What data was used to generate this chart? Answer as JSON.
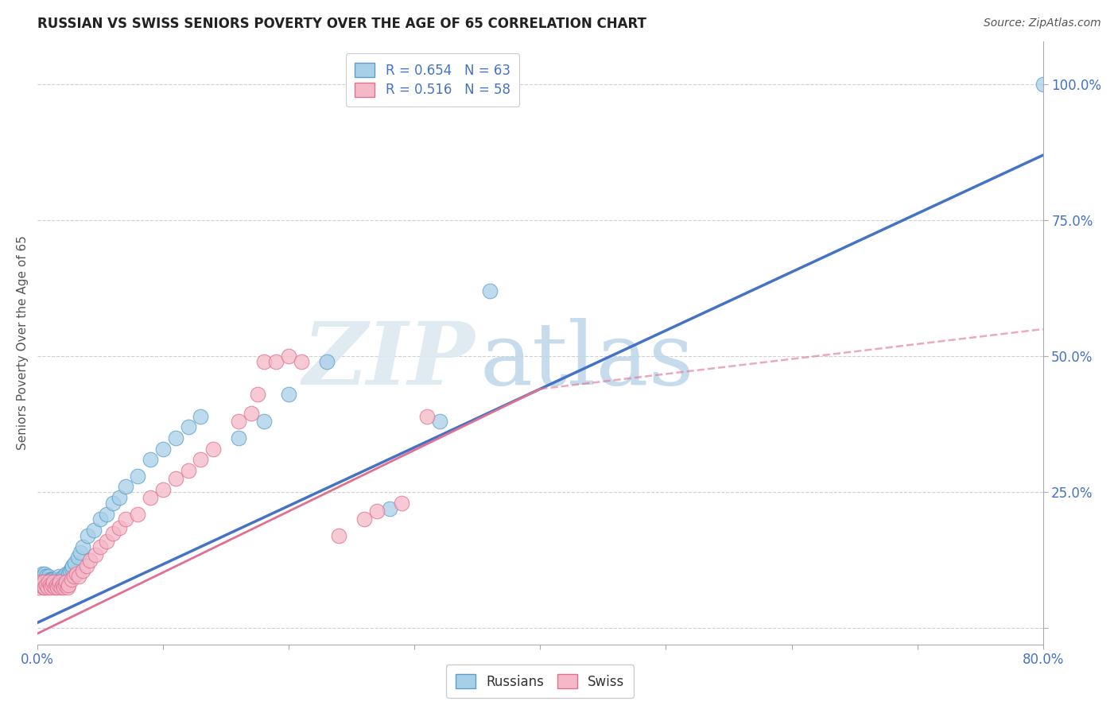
{
  "title": "RUSSIAN VS SWISS SENIORS POVERTY OVER THE AGE OF 65 CORRELATION CHART",
  "source": "Source: ZipAtlas.com",
  "ylabel": "Seniors Poverty Over the Age of 65",
  "xlim": [
    0.0,
    0.8
  ],
  "ylim": [
    -0.03,
    1.08
  ],
  "xticks": [
    0.0,
    0.1,
    0.2,
    0.3,
    0.4,
    0.5,
    0.6,
    0.7,
    0.8
  ],
  "xticklabels": [
    "0.0%",
    "",
    "",
    "",
    "",
    "",
    "",
    "",
    "80.0%"
  ],
  "right_yticks": [
    0.0,
    0.25,
    0.5,
    0.75,
    1.0
  ],
  "right_yticklabels": [
    "",
    "25.0%",
    "50.0%",
    "75.0%",
    "100.0%"
  ],
  "russian_R": 0.654,
  "russian_N": 63,
  "swiss_R": 0.516,
  "swiss_N": 58,
  "russian_color": "#a8cfe8",
  "swiss_color": "#f4b8c8",
  "russian_edge_color": "#5b9ec9",
  "swiss_edge_color": "#e07090",
  "russian_line_color": "#4472c4",
  "swiss_line_color": "#e07090",
  "watermark_zip_color": "#d8e8f0",
  "watermark_atlas_color": "#b0cce0",
  "russians_x": [
    0.001,
    0.002,
    0.003,
    0.004,
    0.005,
    0.005,
    0.006,
    0.006,
    0.007,
    0.007,
    0.008,
    0.008,
    0.009,
    0.009,
    0.01,
    0.01,
    0.011,
    0.011,
    0.012,
    0.012,
    0.013,
    0.013,
    0.014,
    0.015,
    0.015,
    0.016,
    0.017,
    0.018,
    0.019,
    0.02,
    0.021,
    0.022,
    0.023,
    0.024,
    0.025,
    0.026,
    0.027,
    0.028,
    0.03,
    0.032,
    0.034,
    0.036,
    0.04,
    0.045,
    0.05,
    0.055,
    0.06,
    0.065,
    0.07,
    0.08,
    0.09,
    0.1,
    0.11,
    0.12,
    0.13,
    0.16,
    0.18,
    0.2,
    0.23,
    0.28,
    0.32,
    0.36,
    0.8
  ],
  "russians_y": [
    0.085,
    0.09,
    0.095,
    0.1,
    0.095,
    0.085,
    0.09,
    0.1,
    0.095,
    0.085,
    0.09,
    0.085,
    0.095,
    0.08,
    0.09,
    0.085,
    0.09,
    0.085,
    0.09,
    0.085,
    0.08,
    0.09,
    0.085,
    0.09,
    0.08,
    0.09,
    0.095,
    0.09,
    0.085,
    0.09,
    0.095,
    0.09,
    0.1,
    0.095,
    0.1,
    0.105,
    0.11,
    0.115,
    0.12,
    0.13,
    0.14,
    0.15,
    0.17,
    0.18,
    0.2,
    0.21,
    0.23,
    0.24,
    0.26,
    0.28,
    0.31,
    0.33,
    0.35,
    0.37,
    0.39,
    0.35,
    0.38,
    0.43,
    0.49,
    0.22,
    0.38,
    0.62,
    1.0
  ],
  "swiss_x": [
    0.001,
    0.002,
    0.003,
    0.004,
    0.005,
    0.005,
    0.006,
    0.007,
    0.008,
    0.009,
    0.01,
    0.011,
    0.012,
    0.013,
    0.014,
    0.015,
    0.016,
    0.017,
    0.018,
    0.019,
    0.02,
    0.021,
    0.022,
    0.023,
    0.024,
    0.025,
    0.027,
    0.029,
    0.031,
    0.033,
    0.036,
    0.039,
    0.042,
    0.046,
    0.05,
    0.055,
    0.06,
    0.065,
    0.07,
    0.08,
    0.09,
    0.1,
    0.11,
    0.12,
    0.13,
    0.14,
    0.16,
    0.17,
    0.175,
    0.18,
    0.19,
    0.2,
    0.21,
    0.24,
    0.26,
    0.27,
    0.29,
    0.31
  ],
  "swiss_y": [
    0.075,
    0.08,
    0.085,
    0.08,
    0.075,
    0.085,
    0.075,
    0.08,
    0.075,
    0.085,
    0.08,
    0.075,
    0.08,
    0.085,
    0.075,
    0.08,
    0.075,
    0.08,
    0.085,
    0.075,
    0.08,
    0.075,
    0.08,
    0.085,
    0.075,
    0.08,
    0.09,
    0.095,
    0.1,
    0.095,
    0.105,
    0.115,
    0.125,
    0.135,
    0.15,
    0.16,
    0.175,
    0.185,
    0.2,
    0.21,
    0.24,
    0.255,
    0.275,
    0.29,
    0.31,
    0.33,
    0.38,
    0.395,
    0.43,
    0.49,
    0.49,
    0.5,
    0.49,
    0.17,
    0.2,
    0.215,
    0.23,
    0.39
  ],
  "trend_russian_x0": 0.0,
  "trend_russian_y0": 0.01,
  "trend_russian_x1": 0.8,
  "trend_russian_y1": 0.87,
  "trend_swiss_x0": 0.0,
  "trend_swiss_y0": -0.01,
  "trend_swiss_x1": 0.4,
  "trend_swiss_y1": 0.44,
  "trend_swiss_dash_x0": 0.4,
  "trend_swiss_dash_y0": 0.44,
  "trend_swiss_dash_x1": 0.8,
  "trend_swiss_dash_y1": 0.55
}
